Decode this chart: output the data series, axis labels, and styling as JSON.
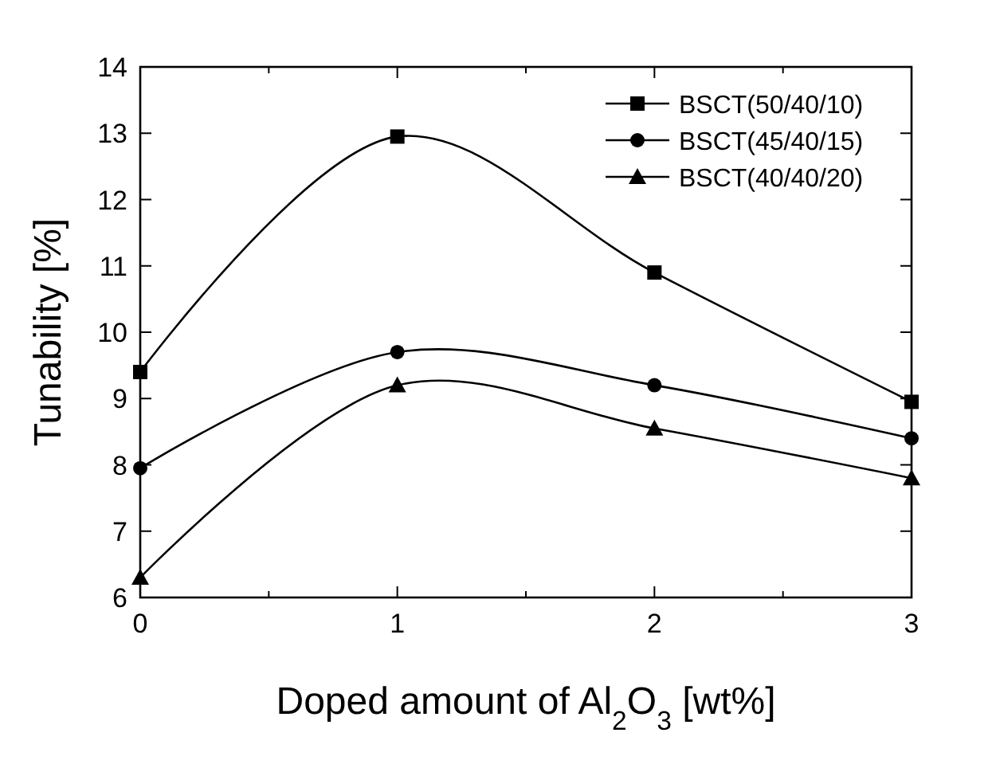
{
  "chart_data": {
    "type": "line",
    "xlabel": "Doped amount of Al$_{2}$O$_{3}$ [wt%]",
    "ylabel": "Tunability [%]",
    "x": [
      0,
      1,
      2,
      3
    ],
    "xlim": [
      0,
      3
    ],
    "xticks": [
      0,
      {
        "value": 0.5,
        "label": null
      },
      1,
      {
        "value": 1.5,
        "label": null
      },
      2,
      {
        "value": 2.5,
        "label": null
      },
      3
    ],
    "ylim": [
      6,
      14
    ],
    "yticks": [
      6,
      7,
      8,
      9,
      10,
      11,
      12,
      13,
      14
    ],
    "grid": false,
    "legend": "top right",
    "line_style": "solid",
    "series": [
      {
        "name": "BSCT(50/40/10)",
        "color": "#000000",
        "marker": "square",
        "values": [
          9.4,
          12.95,
          10.9,
          8.95
        ]
      },
      {
        "name": "BSCT(45/40/15)",
        "color": "#000000",
        "marker": "circle",
        "values": [
          7.95,
          9.7,
          9.2,
          8.4
        ]
      },
      {
        "name": "BSCT(40/40/20)",
        "color": "#000000",
        "marker": "triangle",
        "values": [
          6.3,
          9.2,
          8.55,
          7.8
        ]
      }
    ]
  }
}
